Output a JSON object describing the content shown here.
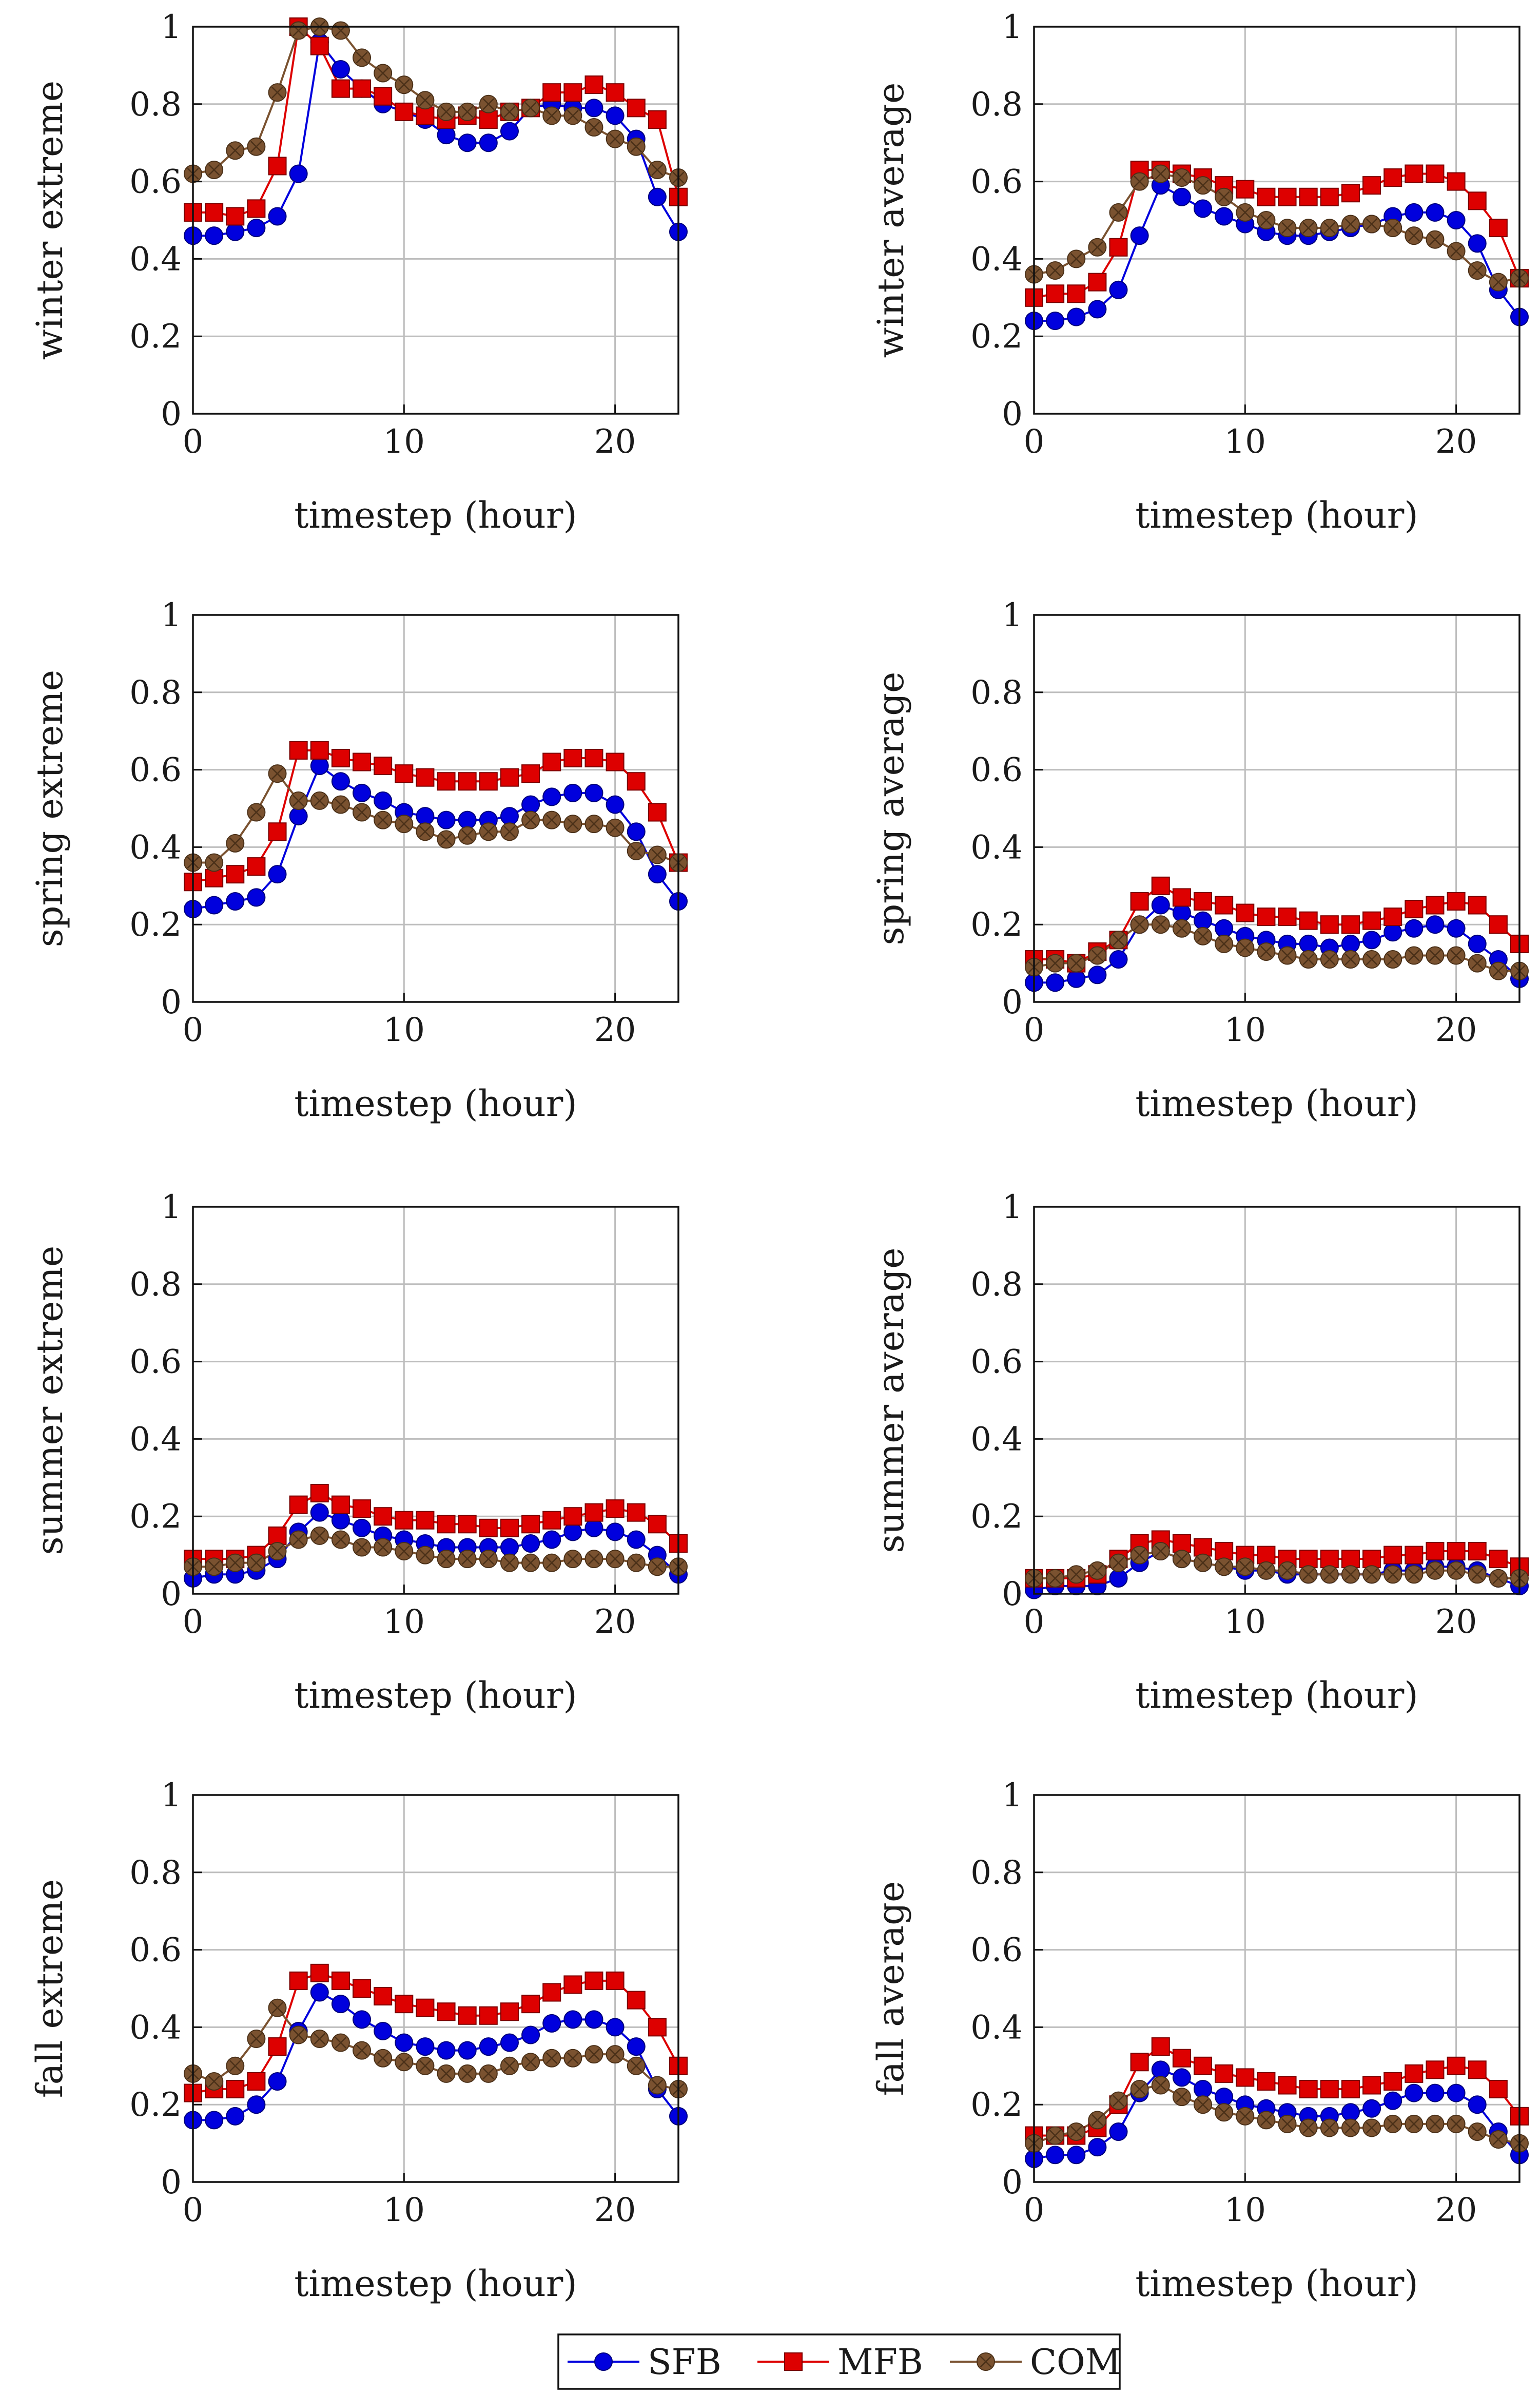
{
  "figure": {
    "colors": {
      "SFB": "#0000dd",
      "MFB": "#dd0000",
      "COM": "#7a5230",
      "grid": "#bdbdbd",
      "axis": "#111111"
    }
  },
  "legend": {
    "entries": [
      {
        "name": "SFB",
        "marker": "circle"
      },
      {
        "name": "MFB",
        "marker": "square"
      },
      {
        "name": "COM",
        "marker": "circle-cross"
      }
    ]
  },
  "chart_data": [
    {
      "type": "line",
      "id": "winter-extreme",
      "ylabel": "winter extreme",
      "xlabel": "timestep (hour)",
      "xlim": [
        0,
        23
      ],
      "ylim": [
        0,
        1
      ],
      "xticks": [
        0,
        10,
        20
      ],
      "yticks": [
        0,
        0.2,
        0.4,
        0.6,
        0.8,
        1
      ],
      "grid": true,
      "series": [
        {
          "name": "SFB",
          "values": [
            0.46,
            0.46,
            0.47,
            0.48,
            0.51,
            0.62,
            0.96,
            0.89,
            0.84,
            0.8,
            0.78,
            0.76,
            0.72,
            0.7,
            0.7,
            0.73,
            0.79,
            0.8,
            0.79,
            0.79,
            0.77,
            0.71,
            0.56,
            0.47
          ]
        },
        {
          "name": "MFB",
          "values": [
            0.52,
            0.52,
            0.51,
            0.53,
            0.64,
            1.0,
            0.95,
            0.84,
            0.84,
            0.82,
            0.78,
            0.77,
            0.76,
            0.77,
            0.76,
            0.78,
            0.79,
            0.83,
            0.83,
            0.85,
            0.83,
            0.79,
            0.76,
            0.56
          ]
        },
        {
          "name": "COM",
          "values": [
            0.62,
            0.63,
            0.68,
            0.69,
            0.83,
            0.99,
            1.0,
            0.99,
            0.92,
            0.88,
            0.85,
            0.81,
            0.78,
            0.78,
            0.8,
            0.78,
            0.79,
            0.77,
            0.77,
            0.74,
            0.71,
            0.69,
            0.63,
            0.61
          ]
        }
      ]
    },
    {
      "type": "line",
      "id": "winter-average",
      "ylabel": "winter average",
      "xlabel": "timestep (hour)",
      "xlim": [
        0,
        23
      ],
      "ylim": [
        0,
        1
      ],
      "xticks": [
        0,
        10,
        20
      ],
      "yticks": [
        0,
        0.2,
        0.4,
        0.6,
        0.8,
        1
      ],
      "grid": true,
      "series": [
        {
          "name": "SFB",
          "values": [
            0.24,
            0.24,
            0.25,
            0.27,
            0.32,
            0.46,
            0.59,
            0.56,
            0.53,
            0.51,
            0.49,
            0.47,
            0.46,
            0.46,
            0.47,
            0.48,
            0.49,
            0.51,
            0.52,
            0.52,
            0.5,
            0.44,
            0.32,
            0.25
          ]
        },
        {
          "name": "MFB",
          "values": [
            0.3,
            0.31,
            0.31,
            0.34,
            0.43,
            0.63,
            0.63,
            0.62,
            0.61,
            0.59,
            0.58,
            0.56,
            0.56,
            0.56,
            0.56,
            0.57,
            0.59,
            0.61,
            0.62,
            0.62,
            0.6,
            0.55,
            0.48,
            0.35
          ]
        },
        {
          "name": "COM",
          "values": [
            0.36,
            0.37,
            0.4,
            0.43,
            0.52,
            0.6,
            0.62,
            0.61,
            0.59,
            0.56,
            0.52,
            0.5,
            0.48,
            0.48,
            0.48,
            0.49,
            0.49,
            0.48,
            0.46,
            0.45,
            0.42,
            0.37,
            0.34,
            0.35
          ]
        }
      ]
    },
    {
      "type": "line",
      "id": "spring-extreme",
      "ylabel": "spring extreme",
      "xlabel": "timestep (hour)",
      "xlim": [
        0,
        23
      ],
      "ylim": [
        0,
        1
      ],
      "xticks": [
        0,
        10,
        20
      ],
      "yticks": [
        0,
        0.2,
        0.4,
        0.6,
        0.8,
        1
      ],
      "grid": true,
      "series": [
        {
          "name": "SFB",
          "values": [
            0.24,
            0.25,
            0.26,
            0.27,
            0.33,
            0.48,
            0.61,
            0.57,
            0.54,
            0.52,
            0.49,
            0.48,
            0.47,
            0.47,
            0.47,
            0.48,
            0.51,
            0.53,
            0.54,
            0.54,
            0.51,
            0.44,
            0.33,
            0.26
          ]
        },
        {
          "name": "MFB",
          "values": [
            0.31,
            0.32,
            0.33,
            0.35,
            0.44,
            0.65,
            0.65,
            0.63,
            0.62,
            0.61,
            0.59,
            0.58,
            0.57,
            0.57,
            0.57,
            0.58,
            0.59,
            0.62,
            0.63,
            0.63,
            0.62,
            0.57,
            0.49,
            0.36
          ]
        },
        {
          "name": "COM",
          "values": [
            0.36,
            0.36,
            0.41,
            0.49,
            0.59,
            0.52,
            0.52,
            0.51,
            0.49,
            0.47,
            0.46,
            0.44,
            0.42,
            0.43,
            0.44,
            0.44,
            0.47,
            0.47,
            0.46,
            0.46,
            0.45,
            0.39,
            0.38,
            0.36
          ]
        }
      ]
    },
    {
      "type": "line",
      "id": "spring-average",
      "ylabel": "spring average",
      "xlabel": "timestep (hour)",
      "xlim": [
        0,
        23
      ],
      "ylim": [
        0,
        1
      ],
      "xticks": [
        0,
        10,
        20
      ],
      "yticks": [
        0,
        0.2,
        0.4,
        0.6,
        0.8,
        1
      ],
      "grid": true,
      "series": [
        {
          "name": "SFB",
          "values": [
            0.05,
            0.05,
            0.06,
            0.07,
            0.11,
            0.2,
            0.25,
            0.23,
            0.21,
            0.19,
            0.17,
            0.16,
            0.15,
            0.15,
            0.14,
            0.15,
            0.16,
            0.18,
            0.19,
            0.2,
            0.19,
            0.15,
            0.11,
            0.06
          ]
        },
        {
          "name": "MFB",
          "values": [
            0.11,
            0.11,
            0.1,
            0.13,
            0.16,
            0.26,
            0.3,
            0.27,
            0.26,
            0.25,
            0.23,
            0.22,
            0.22,
            0.21,
            0.2,
            0.2,
            0.21,
            0.22,
            0.24,
            0.25,
            0.26,
            0.25,
            0.2,
            0.15
          ]
        },
        {
          "name": "COM",
          "values": [
            0.09,
            0.1,
            0.1,
            0.12,
            0.16,
            0.2,
            0.2,
            0.19,
            0.17,
            0.15,
            0.14,
            0.13,
            0.12,
            0.11,
            0.11,
            0.11,
            0.11,
            0.11,
            0.12,
            0.12,
            0.12,
            0.1,
            0.08,
            0.08
          ]
        }
      ]
    },
    {
      "type": "line",
      "id": "summer-extreme",
      "ylabel": "summer extreme",
      "xlabel": "timestep (hour)",
      "xlim": [
        0,
        23
      ],
      "ylim": [
        0,
        1
      ],
      "xticks": [
        0,
        10,
        20
      ],
      "yticks": [
        0,
        0.2,
        0.4,
        0.6,
        0.8,
        1
      ],
      "grid": true,
      "series": [
        {
          "name": "SFB",
          "values": [
            0.04,
            0.05,
            0.05,
            0.06,
            0.09,
            0.16,
            0.21,
            0.19,
            0.17,
            0.15,
            0.14,
            0.13,
            0.12,
            0.12,
            0.12,
            0.12,
            0.13,
            0.14,
            0.16,
            0.17,
            0.16,
            0.14,
            0.1,
            0.05
          ]
        },
        {
          "name": "MFB",
          "values": [
            0.09,
            0.09,
            0.09,
            0.1,
            0.15,
            0.23,
            0.26,
            0.23,
            0.22,
            0.2,
            0.19,
            0.19,
            0.18,
            0.18,
            0.17,
            0.17,
            0.18,
            0.19,
            0.2,
            0.21,
            0.22,
            0.21,
            0.18,
            0.13
          ]
        },
        {
          "name": "COM",
          "values": [
            0.07,
            0.07,
            0.08,
            0.08,
            0.11,
            0.14,
            0.15,
            0.14,
            0.12,
            0.12,
            0.11,
            0.1,
            0.09,
            0.09,
            0.09,
            0.08,
            0.08,
            0.08,
            0.09,
            0.09,
            0.09,
            0.08,
            0.07,
            0.07
          ]
        }
      ]
    },
    {
      "type": "line",
      "id": "summer-average",
      "ylabel": "summer average",
      "xlabel": "timestep (hour)",
      "xlim": [
        0,
        23
      ],
      "ylim": [
        0,
        1
      ],
      "xticks": [
        0,
        10,
        20
      ],
      "yticks": [
        0,
        0.2,
        0.4,
        0.6,
        0.8,
        1
      ],
      "grid": true,
      "series": [
        {
          "name": "SFB",
          "values": [
            0.01,
            0.02,
            0.02,
            0.02,
            0.04,
            0.08,
            0.11,
            0.09,
            0.08,
            0.07,
            0.06,
            0.06,
            0.05,
            0.05,
            0.05,
            0.05,
            0.05,
            0.06,
            0.06,
            0.07,
            0.07,
            0.06,
            0.04,
            0.02
          ]
        },
        {
          "name": "MFB",
          "values": [
            0.04,
            0.04,
            0.04,
            0.05,
            0.09,
            0.13,
            0.14,
            0.13,
            0.12,
            0.11,
            0.1,
            0.1,
            0.09,
            0.09,
            0.09,
            0.09,
            0.09,
            0.1,
            0.1,
            0.11,
            0.11,
            0.11,
            0.09,
            0.07
          ]
        },
        {
          "name": "COM",
          "values": [
            0.04,
            0.04,
            0.05,
            0.06,
            0.08,
            0.1,
            0.11,
            0.09,
            0.08,
            0.07,
            0.07,
            0.06,
            0.06,
            0.05,
            0.05,
            0.05,
            0.05,
            0.05,
            0.05,
            0.06,
            0.06,
            0.05,
            0.04,
            0.04
          ]
        }
      ]
    },
    {
      "type": "line",
      "id": "fall-extreme",
      "ylabel": "fall extreme",
      "xlabel": "timestep (hour)",
      "xlim": [
        0,
        23
      ],
      "ylim": [
        0,
        1
      ],
      "xticks": [
        0,
        10,
        20
      ],
      "yticks": [
        0,
        0.2,
        0.4,
        0.6,
        0.8,
        1
      ],
      "grid": true,
      "series": [
        {
          "name": "SFB",
          "values": [
            0.16,
            0.16,
            0.17,
            0.2,
            0.26,
            0.39,
            0.49,
            0.46,
            0.42,
            0.39,
            0.36,
            0.35,
            0.34,
            0.34,
            0.35,
            0.36,
            0.38,
            0.41,
            0.42,
            0.42,
            0.4,
            0.35,
            0.24,
            0.17
          ]
        },
        {
          "name": "MFB",
          "values": [
            0.23,
            0.24,
            0.24,
            0.26,
            0.35,
            0.52,
            0.54,
            0.52,
            0.5,
            0.48,
            0.46,
            0.45,
            0.44,
            0.43,
            0.43,
            0.44,
            0.46,
            0.49,
            0.51,
            0.52,
            0.52,
            0.47,
            0.4,
            0.3
          ]
        },
        {
          "name": "COM",
          "values": [
            0.28,
            0.26,
            0.3,
            0.37,
            0.45,
            0.38,
            0.37,
            0.36,
            0.34,
            0.32,
            0.31,
            0.3,
            0.28,
            0.28,
            0.28,
            0.3,
            0.31,
            0.32,
            0.32,
            0.33,
            0.33,
            0.3,
            0.25,
            0.24
          ]
        }
      ]
    },
    {
      "type": "line",
      "id": "fall-average",
      "ylabel": "fall average",
      "xlabel": "timestep (hour)",
      "xlim": [
        0,
        23
      ],
      "ylim": [
        0,
        1
      ],
      "xticks": [
        0,
        10,
        20
      ],
      "yticks": [
        0,
        0.2,
        0.4,
        0.6,
        0.8,
        1
      ],
      "grid": true,
      "series": [
        {
          "name": "SFB",
          "values": [
            0.06,
            0.07,
            0.07,
            0.09,
            0.13,
            0.23,
            0.29,
            0.27,
            0.24,
            0.22,
            0.2,
            0.19,
            0.18,
            0.17,
            0.17,
            0.18,
            0.19,
            0.21,
            0.23,
            0.23,
            0.23,
            0.2,
            0.13,
            0.07
          ]
        },
        {
          "name": "MFB",
          "values": [
            0.12,
            0.12,
            0.12,
            0.14,
            0.2,
            0.31,
            0.35,
            0.32,
            0.3,
            0.28,
            0.27,
            0.26,
            0.25,
            0.24,
            0.24,
            0.24,
            0.25,
            0.26,
            0.28,
            0.29,
            0.3,
            0.29,
            0.24,
            0.17
          ]
        },
        {
          "name": "COM",
          "values": [
            0.1,
            0.12,
            0.13,
            0.16,
            0.21,
            0.24,
            0.25,
            0.22,
            0.2,
            0.18,
            0.17,
            0.16,
            0.15,
            0.14,
            0.14,
            0.14,
            0.14,
            0.15,
            0.15,
            0.15,
            0.15,
            0.13,
            0.11,
            0.1
          ]
        }
      ]
    }
  ]
}
